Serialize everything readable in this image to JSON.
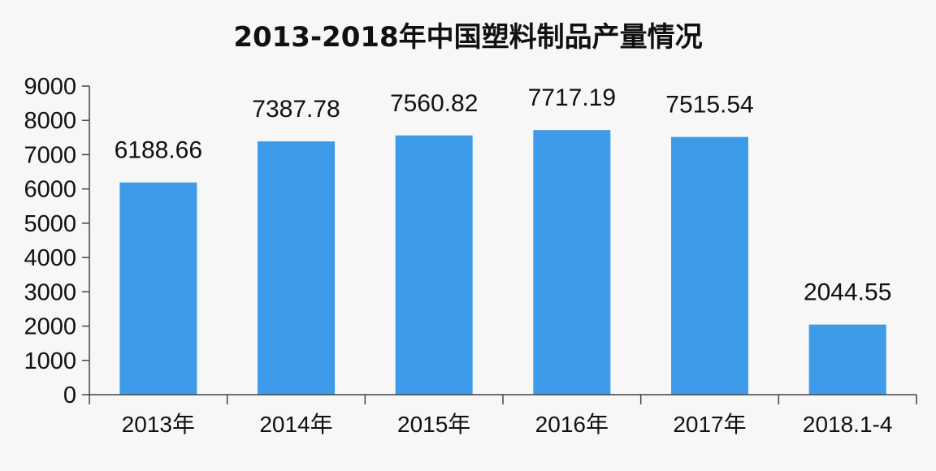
{
  "chart_data": {
    "type": "bar",
    "title": "2013-2018年中国塑料制品产量情况",
    "categories": [
      "2013年",
      "2014年",
      "2015年",
      "2016年",
      "2017年",
      "2018.1-4"
    ],
    "values": [
      6188.66,
      7387.78,
      7560.82,
      7717.19,
      7515.54,
      2044.55
    ],
    "data_labels": [
      "6188.66",
      "7387.78",
      "7560.82",
      "7717.19",
      "7515.54",
      "2044.55"
    ],
    "xlabel": "",
    "ylabel": "",
    "ylim": [
      0,
      9000
    ],
    "yticks": [
      0,
      1000,
      2000,
      3000,
      4000,
      5000,
      6000,
      7000,
      8000,
      9000
    ],
    "grid": false,
    "legend": "none",
    "bar_color": "#3d9be9"
  }
}
